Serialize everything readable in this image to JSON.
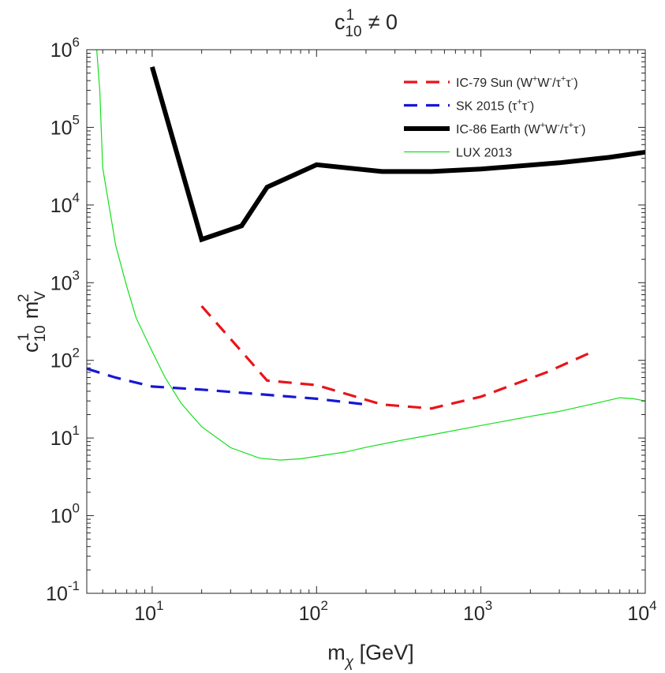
{
  "chart_data": {
    "type": "line",
    "title": {
      "base": "c",
      "sup": "1",
      "sub": "10",
      "rest": " ≠ 0"
    },
    "xlabel": {
      "base": "m",
      "sub": "χ",
      "rest": " [GeV]"
    },
    "ylabel": {
      "base1": "c",
      "sup1": "1",
      "sub1": "10",
      "base2": " m",
      "sup2": "2",
      "sub2": "V"
    },
    "xscale": "log",
    "yscale": "log",
    "xlim": [
      4,
      10000
    ],
    "ylim": [
      0.1,
      1000000
    ],
    "x_ticks": [
      {
        "value": 10,
        "base": "10",
        "exp": "1"
      },
      {
        "value": 100,
        "base": "10",
        "exp": "2"
      },
      {
        "value": 1000,
        "base": "10",
        "exp": "3"
      },
      {
        "value": 10000,
        "base": "10",
        "exp": "4"
      }
    ],
    "y_ticks": [
      {
        "value": 0.1,
        "base": "10",
        "exp": "-1"
      },
      {
        "value": 1,
        "base": "10",
        "exp": "0"
      },
      {
        "value": 10,
        "base": "10",
        "exp": "1"
      },
      {
        "value": 100,
        "base": "10",
        "exp": "2"
      },
      {
        "value": 1000,
        "base": "10",
        "exp": "3"
      },
      {
        "value": 10000,
        "base": "10",
        "exp": "4"
      },
      {
        "value": 100000,
        "base": "10",
        "exp": "5"
      },
      {
        "value": 1000000,
        "base": "10",
        "exp": "6"
      }
    ],
    "legend_position": "top-right",
    "series": [
      {
        "name": "IC-79 Sun",
        "legend_parts": [
          "IC-79 Sun (W",
          "+",
          "W",
          "-",
          "/τ",
          "+",
          "τ",
          "-",
          ")"
        ],
        "color": "#e8151b",
        "style": "dashed",
        "points": [
          [
            20,
            500
          ],
          [
            50,
            55
          ],
          [
            100,
            48
          ],
          [
            250,
            27
          ],
          [
            500,
            24
          ],
          [
            1000,
            34
          ],
          [
            2500,
            70
          ],
          [
            5000,
            135
          ]
        ]
      },
      {
        "name": "SK 2015",
        "legend_parts": [
          "SK 2015 (τ",
          "+",
          "τ",
          "-",
          ")"
        ],
        "color": "#1717d6",
        "style": "dashed",
        "points": [
          [
            4,
            78
          ],
          [
            6,
            60
          ],
          [
            10,
            46
          ],
          [
            20,
            42
          ],
          [
            50,
            36
          ],
          [
            100,
            32
          ],
          [
            200,
            27
          ]
        ]
      },
      {
        "name": "IC-86 Earth",
        "legend_parts": [
          "IC-86 Earth (W",
          "+",
          "W",
          "-",
          "/τ",
          "+",
          "τ",
          "-",
          ")"
        ],
        "color": "#000000",
        "style": "solid-thick",
        "points": [
          [
            10,
            600000
          ],
          [
            20,
            3600
          ],
          [
            35,
            5400
          ],
          [
            50,
            17000
          ],
          [
            100,
            33000
          ],
          [
            250,
            27000
          ],
          [
            500,
            27000
          ],
          [
            1000,
            29000
          ],
          [
            3000,
            35000
          ],
          [
            6000,
            41000
          ],
          [
            10000,
            48000
          ]
        ]
      },
      {
        "name": "LUX 2013",
        "legend_parts": [
          "LUX 2013"
        ],
        "color": "#14e01a",
        "style": "solid-thin",
        "points": [
          [
            4.6,
            1000000
          ],
          [
            4.8,
            300000
          ],
          [
            5,
            30000
          ],
          [
            6,
            3000
          ],
          [
            7,
            900
          ],
          [
            8,
            350
          ],
          [
            10,
            130
          ],
          [
            12,
            60
          ],
          [
            15,
            28
          ],
          [
            20,
            14
          ],
          [
            30,
            7.5
          ],
          [
            45,
            5.5
          ],
          [
            60,
            5.2
          ],
          [
            80,
            5.4
          ],
          [
            100,
            5.8
          ],
          [
            150,
            6.6
          ],
          [
            200,
            7.6
          ],
          [
            300,
            9
          ],
          [
            500,
            11
          ],
          [
            1000,
            14.5
          ],
          [
            2000,
            19
          ],
          [
            3000,
            22
          ],
          [
            5000,
            28
          ],
          [
            7000,
            33
          ],
          [
            8500,
            32
          ],
          [
            10000,
            30
          ]
        ]
      }
    ]
  }
}
